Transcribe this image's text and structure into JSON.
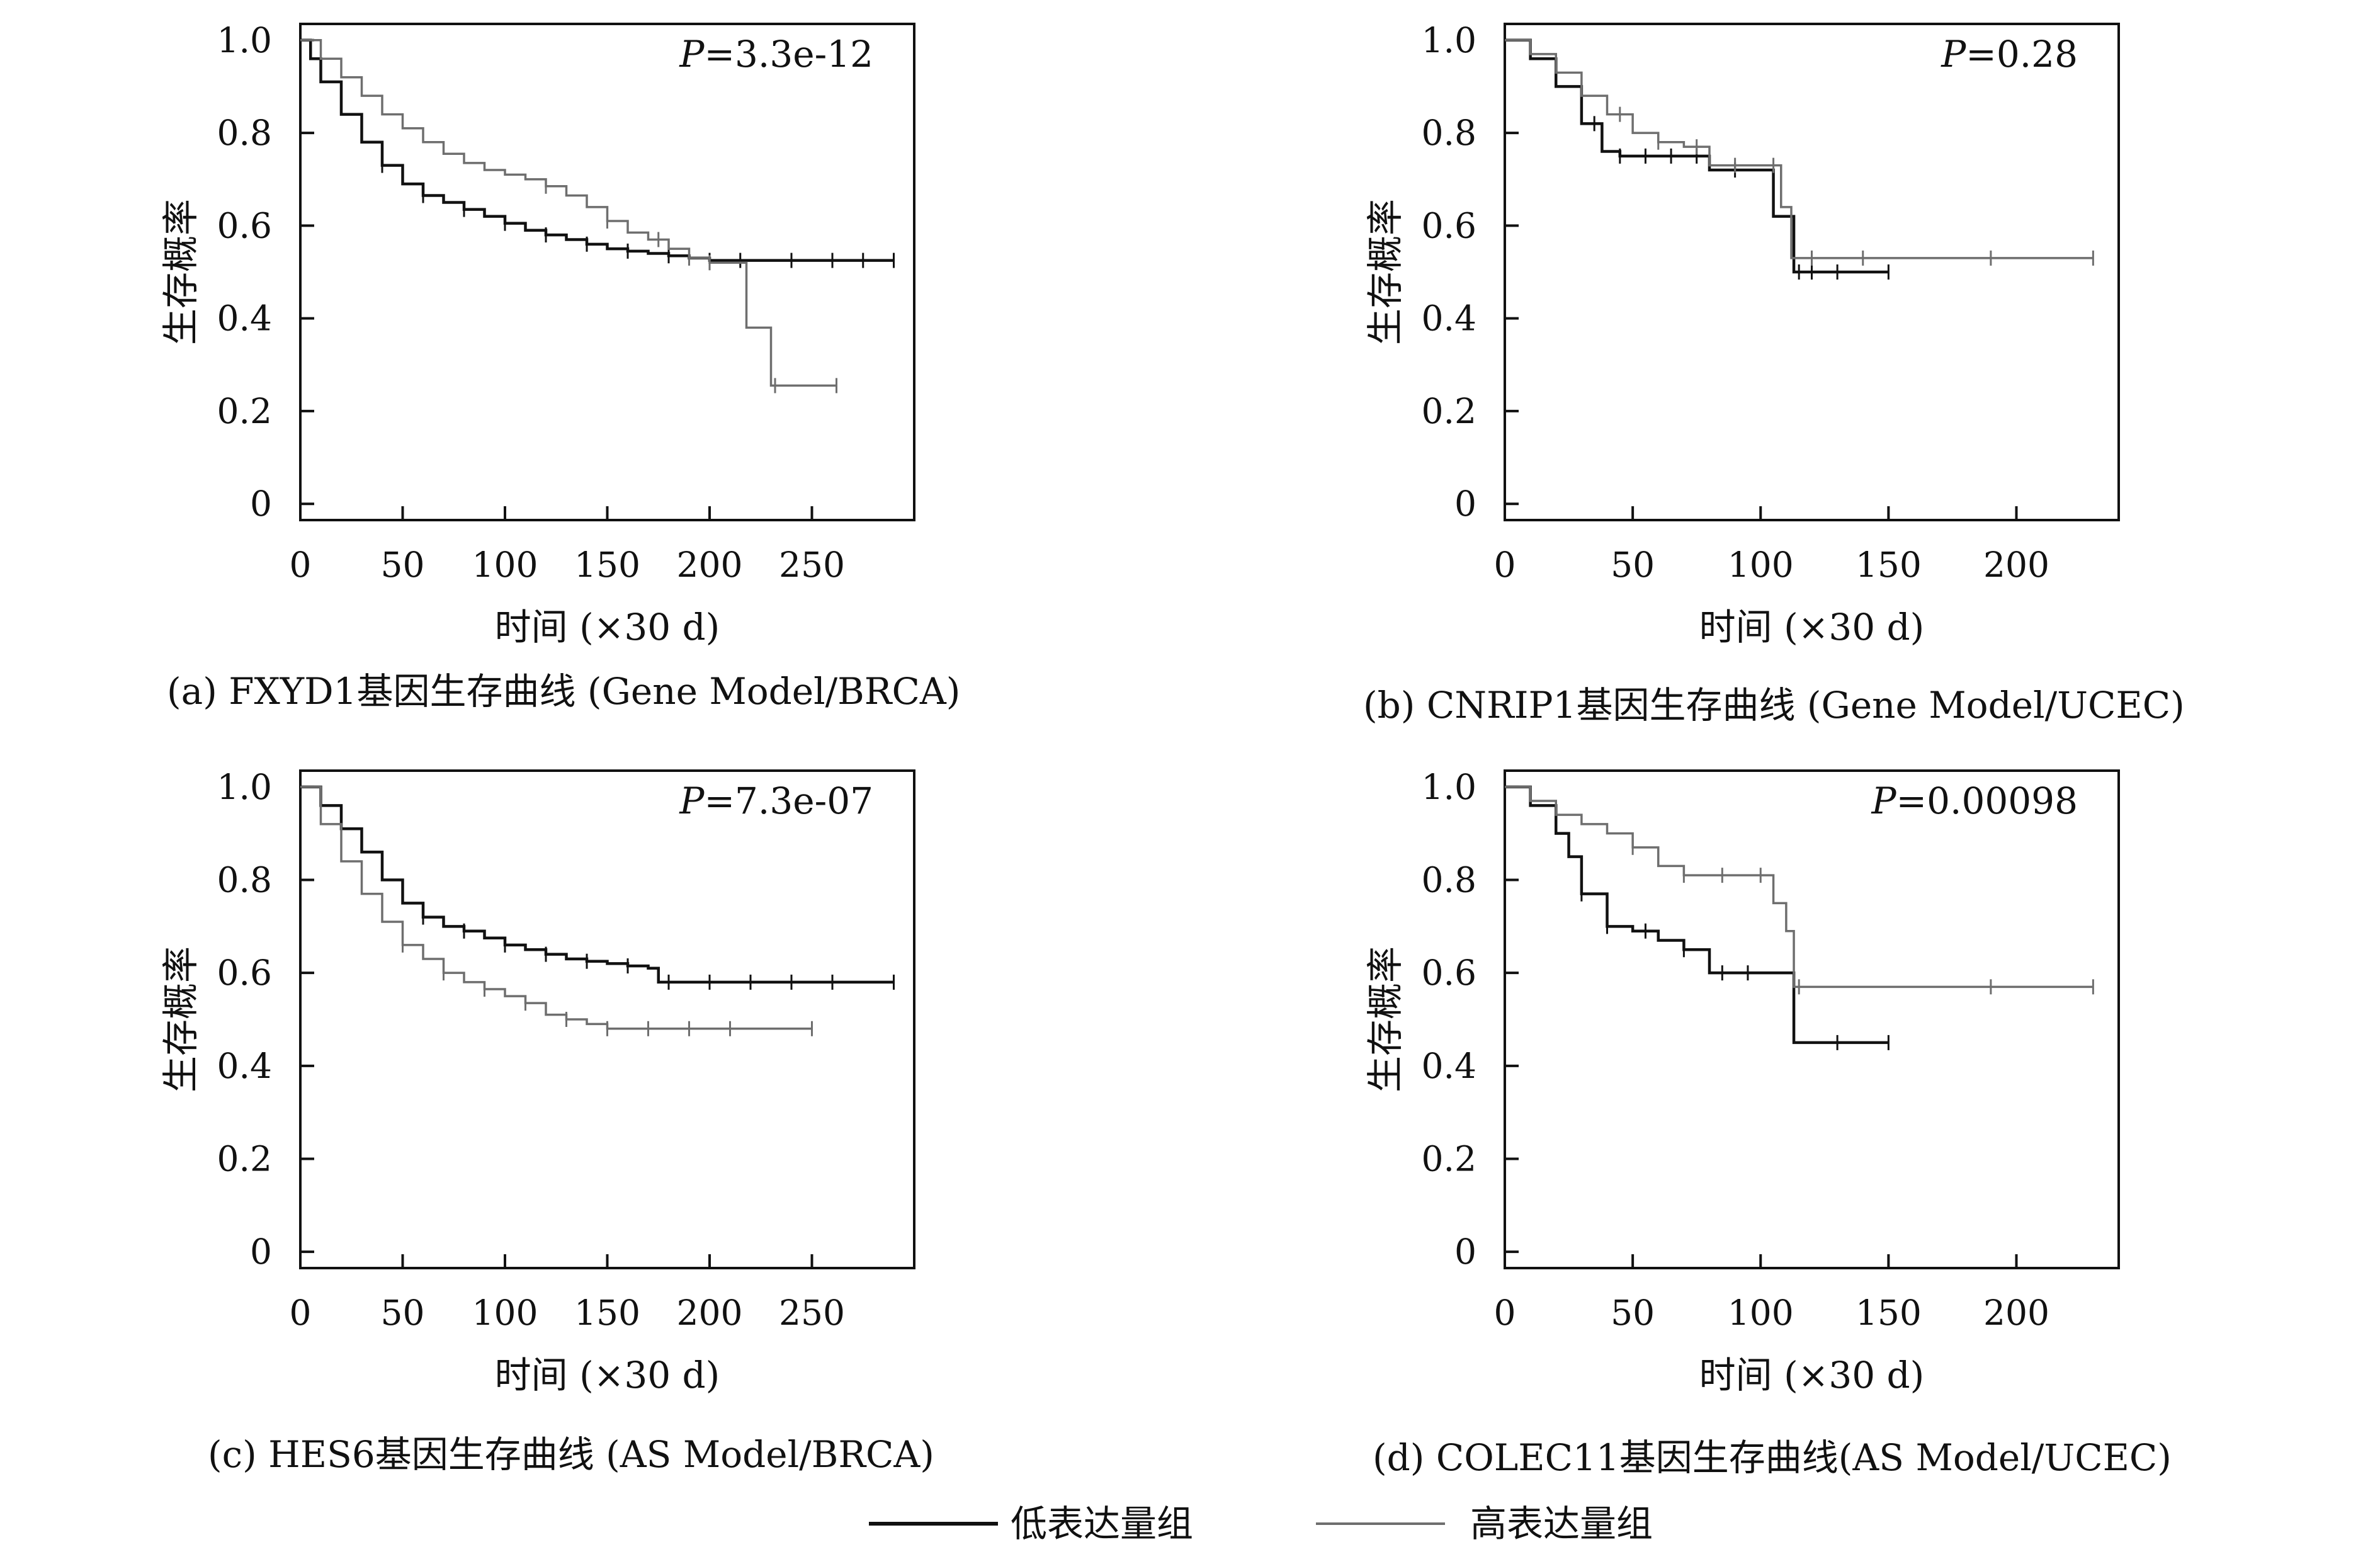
{
  "figure": {
    "legend": {
      "items": [
        {
          "label": "低表达量组",
          "color": "#111111"
        },
        {
          "label": "高表达量组",
          "color": "#6e6e6e"
        }
      ]
    }
  },
  "chart_data": [
    {
      "type": "line",
      "caption": "(a) FXYD1基因生存曲线 (Gene Model/BRCA)",
      "p_value": {
        "prefix": "P",
        "value": "=3.3e-12"
      },
      "xlabel": "时间 (×30 d)",
      "ylabel": "生存概率",
      "xlim": [
        0,
        300
      ],
      "ylim": [
        0,
        1.0
      ],
      "xticks": [
        "0",
        "50",
        "100",
        "150",
        "200",
        "250"
      ],
      "yticks": [
        "0",
        "0.2",
        "0.4",
        "0.6",
        "0.8",
        "1.0"
      ],
      "series": [
        {
          "legend_ref": 0,
          "color": "#111111",
          "x": [
            0,
            5,
            10,
            20,
            30,
            40,
            50,
            60,
            70,
            80,
            90,
            100,
            110,
            120,
            130,
            140,
            150,
            160,
            170,
            180,
            190,
            200,
            210,
            230,
            260,
            290
          ],
          "y": [
            1.0,
            0.96,
            0.91,
            0.84,
            0.78,
            0.73,
            0.69,
            0.665,
            0.65,
            0.635,
            0.62,
            0.605,
            0.59,
            0.58,
            0.57,
            0.56,
            0.55,
            0.545,
            0.54,
            0.535,
            0.53,
            0.525,
            0.525,
            0.525,
            0.525,
            0.525
          ],
          "censor_x": [
            40,
            60,
            80,
            100,
            120,
            140,
            160,
            180,
            200,
            215,
            240,
            260,
            275,
            290
          ]
        },
        {
          "legend_ref": 1,
          "color": "#6e6e6e",
          "x": [
            0,
            10,
            20,
            30,
            40,
            50,
            60,
            70,
            80,
            90,
            100,
            110,
            120,
            130,
            140,
            150,
            160,
            170,
            180,
            190,
            200,
            208,
            218,
            230,
            262
          ],
          "y": [
            1.0,
            0.96,
            0.92,
            0.88,
            0.84,
            0.81,
            0.78,
            0.755,
            0.735,
            0.72,
            0.71,
            0.7,
            0.685,
            0.665,
            0.64,
            0.61,
            0.585,
            0.57,
            0.55,
            0.53,
            0.52,
            0.52,
            0.38,
            0.255,
            0.255
          ],
          "censor_x": [
            120,
            150,
            175,
            190,
            200,
            232,
            262
          ]
        }
      ]
    },
    {
      "type": "line",
      "caption": "(b) CNRIP1基因生存曲线 (Gene Model/UCEC)",
      "p_value": {
        "prefix": "P",
        "value": "=0.28"
      },
      "xlabel": "时间 (×30 d)",
      "ylabel": "生存概率",
      "xlim": [
        0,
        240
      ],
      "ylim": [
        0,
        1.0
      ],
      "xticks": [
        "0",
        "50",
        "100",
        "150",
        "200"
      ],
      "yticks": [
        "0",
        "0.2",
        "0.4",
        "0.6",
        "0.8",
        "1.0"
      ],
      "series": [
        {
          "legend_ref": 0,
          "color": "#111111",
          "x": [
            0,
            10,
            20,
            30,
            38,
            45,
            60,
            80,
            100,
            105,
            110,
            113,
            150
          ],
          "y": [
            1.0,
            0.96,
            0.9,
            0.82,
            0.76,
            0.75,
            0.75,
            0.72,
            0.72,
            0.62,
            0.62,
            0.5,
            0.5
          ],
          "censor_x": [
            35,
            45,
            55,
            65,
            75,
            90,
            115,
            120,
            130,
            150
          ]
        },
        {
          "legend_ref": 1,
          "color": "#6e6e6e",
          "x": [
            0,
            10,
            20,
            30,
            40,
            50,
            60,
            70,
            80,
            100,
            108,
            112,
            230
          ],
          "y": [
            1.0,
            0.97,
            0.93,
            0.88,
            0.84,
            0.8,
            0.78,
            0.77,
            0.73,
            0.73,
            0.64,
            0.53,
            0.53
          ],
          "censor_x": [
            45,
            60,
            75,
            90,
            105,
            120,
            140,
            190,
            230
          ]
        }
      ]
    },
    {
      "type": "line",
      "caption": "(c) HES6基因生存曲线 (AS Model/BRCA)",
      "p_value": {
        "prefix": "P",
        "value": "=7.3e-07"
      },
      "xlabel": "时间 (×30 d)",
      "ylabel": "生存概率",
      "xlim": [
        0,
        300
      ],
      "ylim": [
        0,
        1.0
      ],
      "xticks": [
        "0",
        "50",
        "100",
        "150",
        "200",
        "250"
      ],
      "yticks": [
        "0",
        "0.2",
        "0.4",
        "0.6",
        "0.8",
        "1.0"
      ],
      "series": [
        {
          "legend_ref": 0,
          "color": "#111111",
          "x": [
            0,
            10,
            20,
            30,
            40,
            50,
            60,
            70,
            80,
            90,
            100,
            110,
            120,
            130,
            140,
            150,
            160,
            170,
            175,
            200,
            250,
            290
          ],
          "y": [
            1.0,
            0.96,
            0.91,
            0.86,
            0.8,
            0.75,
            0.72,
            0.7,
            0.69,
            0.675,
            0.66,
            0.65,
            0.64,
            0.63,
            0.625,
            0.62,
            0.615,
            0.61,
            0.58,
            0.58,
            0.58,
            0.58
          ],
          "censor_x": [
            60,
            80,
            100,
            120,
            140,
            160,
            180,
            200,
            220,
            240,
            260,
            290
          ]
        },
        {
          "legend_ref": 1,
          "color": "#6e6e6e",
          "x": [
            0,
            10,
            20,
            30,
            40,
            50,
            60,
            70,
            80,
            90,
            100,
            110,
            120,
            130,
            140,
            150,
            200,
            250
          ],
          "y": [
            1.0,
            0.92,
            0.84,
            0.77,
            0.71,
            0.66,
            0.63,
            0.6,
            0.58,
            0.565,
            0.55,
            0.535,
            0.51,
            0.5,
            0.49,
            0.48,
            0.48,
            0.48
          ],
          "censor_x": [
            50,
            70,
            90,
            110,
            130,
            150,
            170,
            190,
            210,
            250
          ]
        }
      ]
    },
    {
      "type": "line",
      "caption": "(d) COLEC11基因生存曲线(AS Model/UCEC)",
      "p_value": {
        "prefix": "P",
        "value": "=0.00098"
      },
      "xlabel": "时间 (×30 d)",
      "ylabel": "生存概率",
      "xlim": [
        0,
        240
      ],
      "ylim": [
        0,
        1.0
      ],
      "xticks": [
        "0",
        "50",
        "100",
        "150",
        "200"
      ],
      "yticks": [
        "0",
        "0.2",
        "0.4",
        "0.6",
        "0.8",
        "1.0"
      ],
      "series": [
        {
          "legend_ref": 0,
          "color": "#111111",
          "x": [
            0,
            10,
            20,
            25,
            30,
            40,
            50,
            60,
            70,
            80,
            110,
            113,
            150
          ],
          "y": [
            1.0,
            0.96,
            0.9,
            0.85,
            0.77,
            0.7,
            0.69,
            0.67,
            0.65,
            0.6,
            0.6,
            0.45,
            0.45
          ],
          "censor_x": [
            30,
            40,
            55,
            70,
            85,
            95,
            130,
            150
          ]
        },
        {
          "legend_ref": 1,
          "color": "#6e6e6e",
          "x": [
            0,
            10,
            20,
            30,
            40,
            50,
            60,
            70,
            80,
            100,
            105,
            110,
            113,
            230
          ],
          "y": [
            1.0,
            0.97,
            0.94,
            0.92,
            0.9,
            0.87,
            0.83,
            0.81,
            0.81,
            0.81,
            0.75,
            0.69,
            0.57,
            0.57
          ],
          "censor_x": [
            50,
            70,
            85,
            100,
            115,
            190,
            230
          ]
        }
      ]
    }
  ]
}
